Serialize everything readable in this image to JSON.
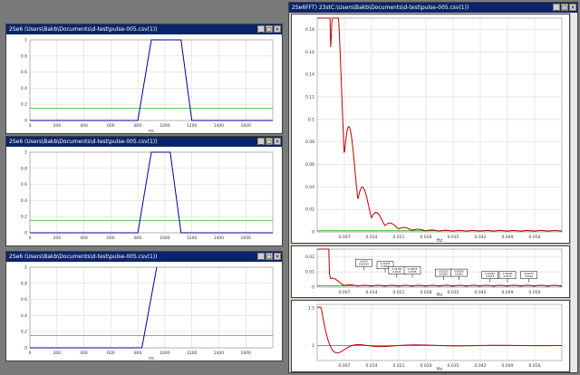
{
  "windows": [
    {
      "title": "2Se6 (Users\\Bakb\\Documents\\d-test\\pulse-005.csv(1))",
      "xlabel": "ns"
    },
    {
      "title": "2Se6 (Users\\Bakb\\Documents\\d-test\\pulse-005.csv(1))",
      "xlabel": "ns"
    },
    {
      "title": "2Se6 (Users\\Bakb\\Documents\\d-test\\pulse-005.csv(1))",
      "xlabel": "ns"
    }
  ],
  "right_window": {
    "title": "2Se6FFT) 23stC:\\Users\\Bakb\\Documents\\d-test\\pulse-005.csv(1))",
    "xlabel": "Hz"
  },
  "controls": {
    "min": "_",
    "max": "□",
    "close": "×"
  },
  "chart_data": [
    {
      "type": "line",
      "title": "",
      "xlabel": "ns",
      "x_ticks": [
        "0",
        "200",
        "400",
        "600",
        "800",
        "1000",
        "1200",
        "1400",
        "1600"
      ],
      "y_ticks": [
        "0",
        "0.2",
        "0.4",
        "0.6",
        "0.8",
        "1"
      ],
      "xlim": [
        0,
        1800
      ],
      "ylim": [
        0,
        1
      ],
      "series": [
        {
          "color": "#0000a0",
          "x": [
            0,
            800,
            900,
            1120,
            1200,
            1800
          ],
          "y": [
            0,
            0,
            1,
            1,
            0,
            0
          ]
        }
      ]
    },
    {
      "type": "line",
      "title": "",
      "xlabel": "",
      "x_ticks": [
        "0",
        "200",
        "400",
        "600",
        "800",
        "1000",
        "1200",
        "1400",
        "1600"
      ],
      "y_ticks": [
        "0",
        "0.2",
        "0.4",
        "0.6",
        "0.8",
        "1"
      ],
      "xlim": [
        0,
        1800
      ],
      "ylim": [
        0,
        1
      ],
      "series": [
        {
          "color": "#0000a0",
          "x": [
            0,
            800,
            900,
            1040,
            1120,
            1800
          ],
          "y": [
            0,
            0,
            1,
            1,
            0,
            0
          ]
        }
      ]
    },
    {
      "type": "line",
      "title": "",
      "xlabel": "ns",
      "x_ticks": [
        "0",
        "200",
        "400",
        "600",
        "800",
        "1000",
        "1200",
        "1400",
        "1600"
      ],
      "y_ticks": [
        "0",
        "0.2",
        "0.4",
        "0.6",
        "0.8",
        "1"
      ],
      "xlim": [
        0,
        1800
      ],
      "ylim": [
        0,
        1
      ],
      "series": [
        {
          "color": "#0000a0",
          "x": [
            0,
            800,
            830,
            940
          ],
          "y": [
            0,
            0,
            0,
            1
          ]
        }
      ]
    },
    {
      "type": "line",
      "title": "",
      "xlabel": "Hz",
      "x_ticks": [
        "0.007",
        "0.014",
        "0.021",
        "0.028",
        "0.035",
        "0.042",
        "0.049",
        "0.056"
      ],
      "y_ticks": [
        "0",
        "0.02",
        "0.04",
        "0.06",
        "0.08",
        "0.1",
        "0.12",
        "0.14",
        "0.16",
        "0.18"
      ],
      "xlim": [
        0,
        0.063
      ],
      "ylim": [
        0,
        0.19
      ],
      "series": [
        {
          "color": "#c00000",
          "kind": "sinc",
          "x0": 0.0005,
          "decay": 0.004
        }
      ]
    },
    {
      "type": "line",
      "title": "",
      "xlabel": "Hz",
      "x_ticks": [
        "0.007",
        "0.014",
        "0.021",
        "0.028",
        "0.035",
        "0.042",
        "0.049",
        "0.056"
      ],
      "y_ticks": [
        "0",
        "0.01",
        "0.02"
      ],
      "xlim": [
        0,
        0.063
      ],
      "ylim": [
        0,
        0.025
      ],
      "series": [
        {
          "color": "#c00000",
          "kind": "sinc",
          "x0": 0.0005,
          "decay": 0.0015
        }
      ],
      "annotations": [
        {
          "x": 0.012,
          "y": 0.013,
          "text": "0.0073 0.00539"
        },
        {
          "x": 0.0175,
          "y": 0.0115,
          "text": "0.01455 0.0062"
        },
        {
          "x": 0.0205,
          "y": 0.008,
          "text": "0.02165 0.0049"
        },
        {
          "x": 0.0245,
          "y": 0.008,
          "text": "0.02825 0.0036"
        },
        {
          "x": 0.0325,
          "y": 0.0065,
          "text": "0.03535 0.0025"
        },
        {
          "x": 0.0365,
          "y": 0.0065,
          "text": "0.04245 0.0021"
        },
        {
          "x": 0.0445,
          "y": 0.005,
          "text": "0.04955 0.0018"
        },
        {
          "x": 0.049,
          "y": 0.005,
          "text": "0.05665 0.0015"
        },
        {
          "x": 0.0545,
          "y": 0.005,
          "text": "0.06375 0.0014"
        }
      ]
    },
    {
      "type": "line",
      "title": "",
      "xlabel": "Hz",
      "x_ticks": [
        "0.007",
        "0.014",
        "0.021",
        "0.028",
        "0.035",
        "0.042",
        "0.049",
        "0.056"
      ],
      "y_ticks": [
        "1",
        "1.5"
      ],
      "xlim": [
        0,
        0.063
      ],
      "ylim": [
        0.8,
        1.55
      ],
      "series": [
        {
          "color": "#c00000",
          "kind": "damped",
          "x0": 0.001
        }
      ]
    }
  ]
}
